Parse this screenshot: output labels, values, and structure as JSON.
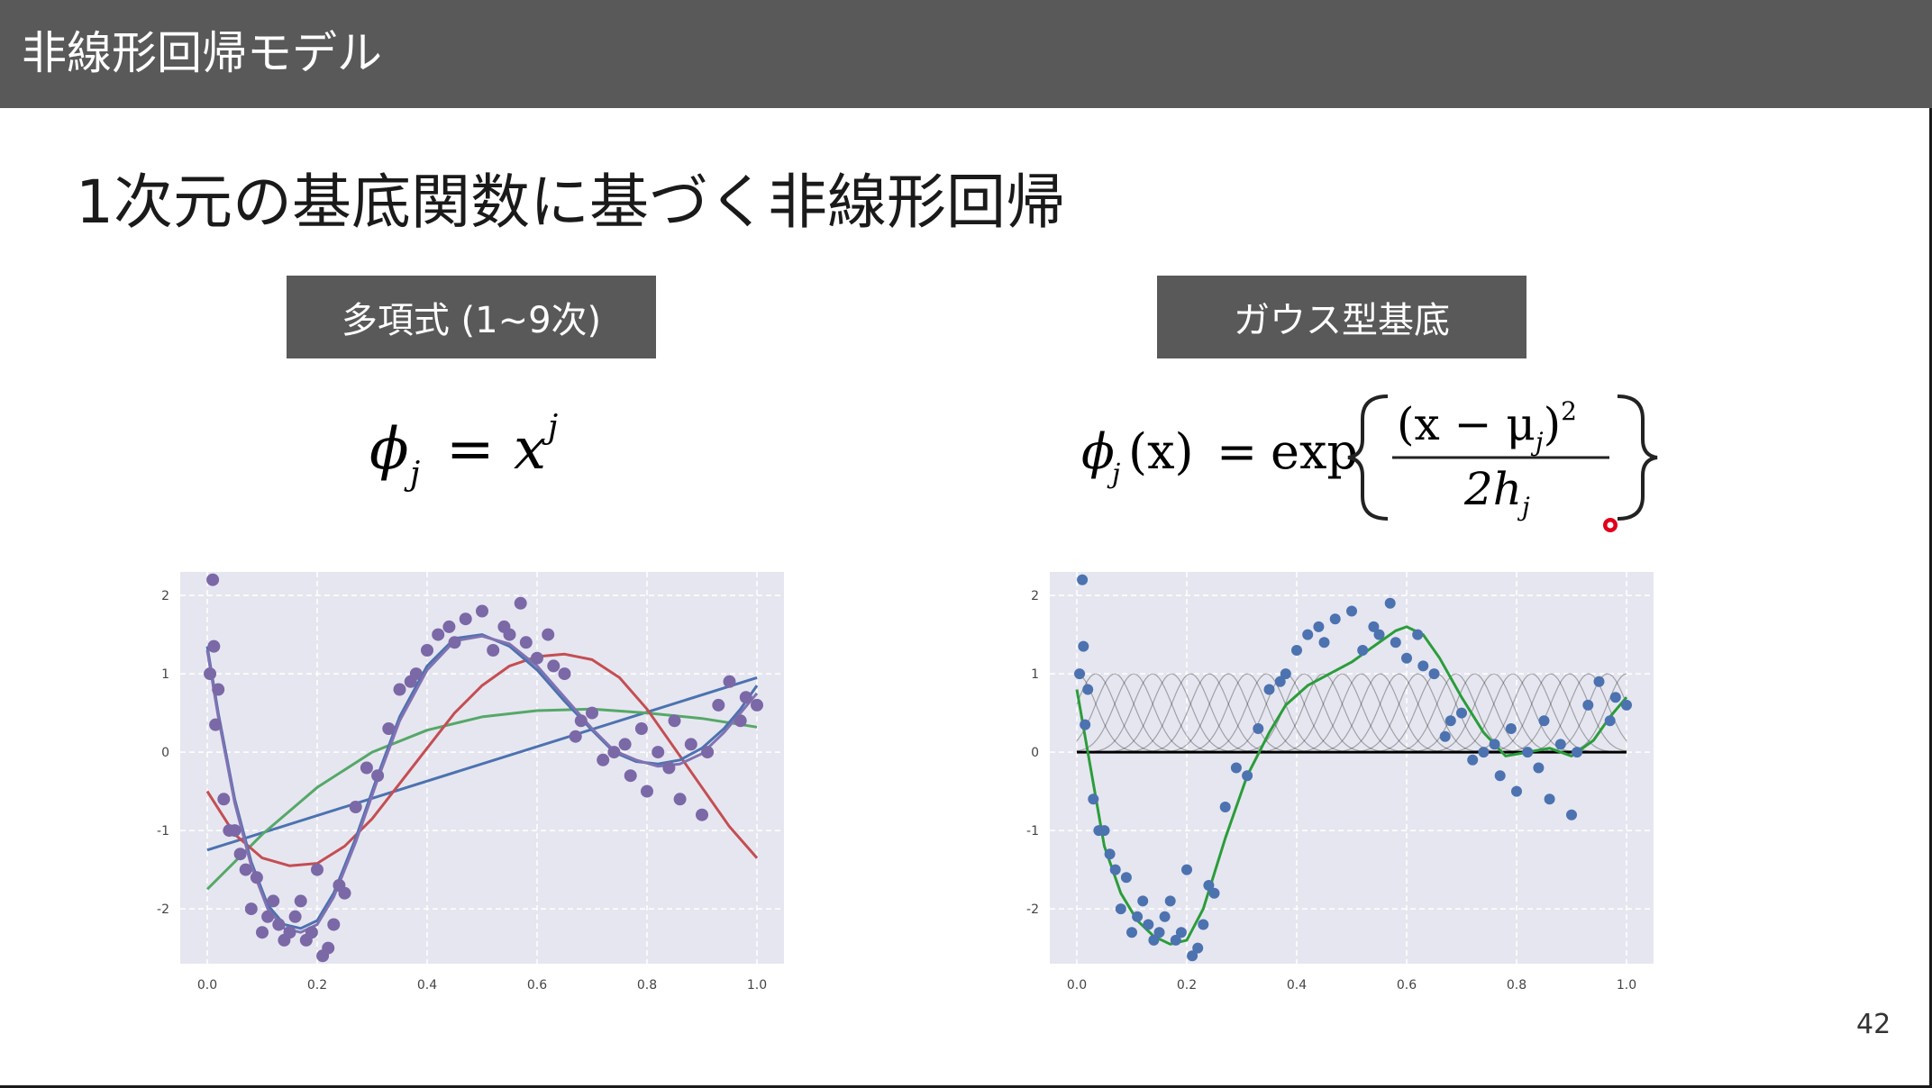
{
  "header": {
    "title": "非線形回帰モデル"
  },
  "slide": {
    "title": "1次元の基底関数に基づく非線形回帰"
  },
  "polynomial": {
    "label": "多項式 (1~9次)"
  },
  "gaussian": {
    "label": "ガウス型基底"
  },
  "formulas": {
    "polynomial": {
      "phi": "ϕ",
      "sub": "j",
      "eq": "=",
      "base": "x",
      "sup": "j"
    },
    "gaussian": {
      "lhs": "ϕ",
      "sub": "j",
      "arg": "(x)",
      "eq": "=",
      "exp": "exp",
      "numerator": "(x − μ",
      "numerator_sub": "j",
      "numerator_tail": ")",
      "numerator_sup": "2",
      "denominator": "2h",
      "denominator_sub": "j"
    }
  },
  "colors": {
    "header_bg": "#595959",
    "plot_bg": "#e6e6f0",
    "pointer": "#e0001b"
  },
  "chart_data": [
    {
      "type": "scatter",
      "xlim": [
        0.0,
        1.0
      ],
      "ylim": [
        -2.7,
        2.3
      ],
      "xticks": [
        0.0,
        0.2,
        0.4,
        0.6,
        0.8,
        1.0
      ],
      "xtick_labels": [
        "0.0",
        "0.2",
        "0.4",
        "0.6",
        "0.8",
        "1.0"
      ],
      "yticks": [
        -2,
        -1,
        0,
        1,
        2
      ],
      "ytick_labels": [
        "-2",
        "-1",
        "0",
        "1",
        "2"
      ],
      "grid": true,
      "points": {
        "color": "#7b68a6",
        "x": [
          0.005,
          0.01,
          0.012,
          0.015,
          0.02,
          0.03,
          0.04,
          0.05,
          0.06,
          0.07,
          0.08,
          0.09,
          0.1,
          0.11,
          0.12,
          0.13,
          0.14,
          0.15,
          0.16,
          0.17,
          0.18,
          0.19,
          0.2,
          0.21,
          0.22,
          0.23,
          0.24,
          0.25,
          0.27,
          0.29,
          0.31,
          0.33,
          0.35,
          0.37,
          0.38,
          0.4,
          0.42,
          0.44,
          0.45,
          0.47,
          0.5,
          0.52,
          0.54,
          0.55,
          0.57,
          0.58,
          0.6,
          0.62,
          0.63,
          0.65,
          0.67,
          0.68,
          0.7,
          0.72,
          0.74,
          0.76,
          0.77,
          0.79,
          0.8,
          0.82,
          0.84,
          0.85,
          0.86,
          0.88,
          0.9,
          0.91,
          0.93,
          0.95,
          0.97,
          0.98,
          1.0
        ],
        "y": [
          1.0,
          2.2,
          1.35,
          0.35,
          0.8,
          -0.6,
          -1.0,
          -1.0,
          -1.3,
          -1.5,
          -2.0,
          -1.6,
          -2.3,
          -2.1,
          -1.9,
          -2.2,
          -2.4,
          -2.3,
          -2.1,
          -1.9,
          -2.4,
          -2.3,
          -1.5,
          -2.6,
          -2.5,
          -2.2,
          -1.7,
          -1.8,
          -0.7,
          -0.2,
          -0.3,
          0.3,
          0.8,
          0.9,
          1.0,
          1.3,
          1.5,
          1.6,
          1.4,
          1.7,
          1.8,
          1.3,
          1.6,
          1.5,
          1.9,
          1.4,
          1.2,
          1.5,
          1.1,
          1.0,
          0.2,
          0.4,
          0.5,
          -0.1,
          0.0,
          0.1,
          -0.3,
          0.3,
          -0.5,
          0.0,
          -0.2,
          0.4,
          -0.6,
          0.1,
          -0.8,
          0.0,
          0.6,
          0.9,
          0.4,
          0.7,
          0.6
        ]
      },
      "series": [
        {
          "color": "#4c72b0",
          "x": [
            0.0,
            1.0
          ],
          "y": [
            -1.25,
            0.95
          ]
        },
        {
          "color": "#55a868",
          "x": [
            0.0,
            0.1,
            0.2,
            0.3,
            0.4,
            0.5,
            0.6,
            0.7,
            0.8,
            0.9,
            1.0
          ],
          "y": [
            -1.75,
            -1.05,
            -0.45,
            0.0,
            0.28,
            0.45,
            0.53,
            0.55,
            0.5,
            0.43,
            0.32
          ]
        },
        {
          "color": "#c44e52",
          "x": [
            0.0,
            0.05,
            0.1,
            0.15,
            0.2,
            0.25,
            0.3,
            0.35,
            0.4,
            0.45,
            0.5,
            0.55,
            0.6,
            0.65,
            0.7,
            0.75,
            0.8,
            0.85,
            0.9,
            0.95,
            1.0
          ],
          "y": [
            -0.5,
            -1.05,
            -1.35,
            -1.45,
            -1.42,
            -1.2,
            -0.85,
            -0.4,
            0.05,
            0.5,
            0.85,
            1.1,
            1.22,
            1.25,
            1.18,
            0.95,
            0.55,
            0.05,
            -0.45,
            -0.95,
            -1.35
          ]
        },
        {
          "color": "#4c72b0",
          "x": [
            0.0,
            0.02,
            0.05,
            0.08,
            0.11,
            0.14,
            0.17,
            0.2,
            0.23,
            0.27,
            0.31,
            0.35,
            0.4,
            0.45,
            0.5,
            0.55,
            0.6,
            0.65,
            0.7,
            0.74,
            0.78,
            0.82,
            0.86,
            0.9,
            0.94,
            0.97,
            1.0
          ],
          "y": [
            1.35,
            0.5,
            -0.6,
            -1.4,
            -1.95,
            -2.2,
            -2.25,
            -2.15,
            -1.8,
            -1.1,
            -0.3,
            0.45,
            1.1,
            1.45,
            1.5,
            1.35,
            1.05,
            0.65,
            0.28,
            0.0,
            -0.12,
            -0.15,
            -0.1,
            0.05,
            0.3,
            0.55,
            0.85
          ]
        },
        {
          "color": "#8172b2",
          "x": [
            0.0,
            0.02,
            0.05,
            0.08,
            0.11,
            0.14,
            0.17,
            0.2,
            0.23,
            0.27,
            0.31,
            0.35,
            0.4,
            0.45,
            0.5,
            0.55,
            0.6,
            0.65,
            0.7,
            0.74,
            0.78,
            0.82,
            0.86,
            0.9,
            0.94,
            0.97,
            1.0
          ],
          "y": [
            1.3,
            0.45,
            -0.65,
            -1.45,
            -2.0,
            -2.25,
            -2.3,
            -2.2,
            -1.85,
            -1.15,
            -0.35,
            0.4,
            1.05,
            1.42,
            1.48,
            1.38,
            1.1,
            0.7,
            0.3,
            0.02,
            -0.1,
            -0.18,
            -0.15,
            -0.02,
            0.25,
            0.5,
            0.75
          ]
        }
      ]
    },
    {
      "type": "scatter",
      "xlim": [
        0.0,
        1.0
      ],
      "ylim": [
        -2.7,
        2.3
      ],
      "xticks": [
        0.0,
        0.2,
        0.4,
        0.6,
        0.8,
        1.0
      ],
      "xtick_labels": [
        "0.0",
        "0.2",
        "0.4",
        "0.6",
        "0.8",
        "1.0"
      ],
      "yticks": [
        -2,
        -1,
        0,
        1,
        2
      ],
      "ytick_labels": [
        "-2",
        "-1",
        "0",
        "1",
        "2"
      ],
      "grid": true,
      "basis_functions": {
        "color": "#000000",
        "count": 30,
        "center_range": [
          0.0,
          1.0
        ],
        "width": 0.035,
        "height": 1.0
      },
      "points": {
        "color": "#4c72b0",
        "x": [
          0.005,
          0.01,
          0.012,
          0.015,
          0.02,
          0.03,
          0.04,
          0.05,
          0.06,
          0.07,
          0.08,
          0.09,
          0.1,
          0.11,
          0.12,
          0.13,
          0.14,
          0.15,
          0.16,
          0.17,
          0.18,
          0.19,
          0.2,
          0.21,
          0.22,
          0.23,
          0.24,
          0.25,
          0.27,
          0.29,
          0.31,
          0.33,
          0.35,
          0.37,
          0.38,
          0.4,
          0.42,
          0.44,
          0.45,
          0.47,
          0.5,
          0.52,
          0.54,
          0.55,
          0.57,
          0.58,
          0.6,
          0.62,
          0.63,
          0.65,
          0.67,
          0.68,
          0.7,
          0.72,
          0.74,
          0.76,
          0.77,
          0.79,
          0.8,
          0.82,
          0.84,
          0.85,
          0.86,
          0.88,
          0.9,
          0.91,
          0.93,
          0.95,
          0.97,
          0.98,
          1.0
        ],
        "y": [
          1.0,
          2.2,
          1.35,
          0.35,
          0.8,
          -0.6,
          -1.0,
          -1.0,
          -1.3,
          -1.5,
          -2.0,
          -1.6,
          -2.3,
          -2.1,
          -1.9,
          -2.2,
          -2.4,
          -2.3,
          -2.1,
          -1.9,
          -2.4,
          -2.3,
          -1.5,
          -2.6,
          -2.5,
          -2.2,
          -1.7,
          -1.8,
          -0.7,
          -0.2,
          -0.3,
          0.3,
          0.8,
          0.9,
          1.0,
          1.3,
          1.5,
          1.6,
          1.4,
          1.7,
          1.8,
          1.3,
          1.6,
          1.5,
          1.9,
          1.4,
          1.2,
          1.5,
          1.1,
          1.0,
          0.2,
          0.4,
          0.5,
          -0.1,
          0.0,
          0.1,
          -0.3,
          0.3,
          -0.5,
          0.0,
          -0.2,
          0.4,
          -0.6,
          0.1,
          -0.8,
          0.0,
          0.6,
          0.9,
          0.4,
          0.7,
          0.6
        ]
      },
      "series": [
        {
          "color": "#2a9d3a",
          "x": [
            0.0,
            0.02,
            0.05,
            0.08,
            0.11,
            0.14,
            0.17,
            0.2,
            0.23,
            0.27,
            0.31,
            0.35,
            0.38,
            0.42,
            0.46,
            0.5,
            0.54,
            0.58,
            0.6,
            0.63,
            0.66,
            0.7,
            0.74,
            0.78,
            0.82,
            0.86,
            0.9,
            0.94,
            0.97,
            1.0
          ],
          "y": [
            0.8,
            0.0,
            -1.2,
            -1.8,
            -2.15,
            -2.35,
            -2.45,
            -2.4,
            -2.0,
            -1.1,
            -0.3,
            0.25,
            0.6,
            0.85,
            1.0,
            1.15,
            1.35,
            1.55,
            1.6,
            1.5,
            1.2,
            0.7,
            0.25,
            -0.05,
            0.0,
            0.05,
            -0.05,
            0.15,
            0.45,
            0.7
          ]
        }
      ]
    }
  ],
  "page": {
    "number": "42"
  }
}
